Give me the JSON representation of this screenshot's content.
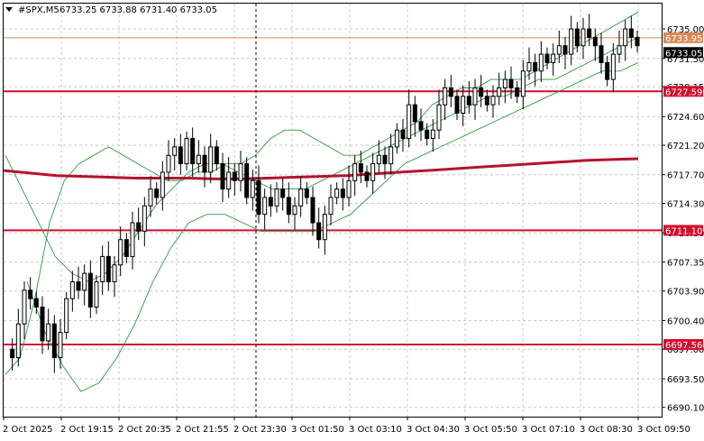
{
  "header": {
    "menu_icon": "triangle-down-icon",
    "symbol": "#SPX,M5",
    "ohlc": "6733.25 6733.88 6731.40 6733.05"
  },
  "chart_data": {
    "type": "candlestick",
    "title": "#SPX,M5",
    "ylim": [
      6689.0,
      6738.0
    ],
    "y_ticks": [
      "6735.00",
      "6731.50",
      "6728.15",
      "6724.60",
      "6721.20",
      "6717.70",
      "6714.30",
      "6710.80",
      "6707.35",
      "6703.90",
      "6700.40",
      "6697.00",
      "6693.50",
      "6690.10"
    ],
    "x_ticks": [
      "2 Oct 2025",
      "2 Oct 19:15",
      "2 Oct 20:35",
      "2 Oct 21:55",
      "2 Oct 23:30",
      "3 Oct 01:50",
      "3 Oct 03:10",
      "3 Oct 04:30",
      "3 Oct 05:50",
      "3 Oct 07:10",
      "3 Oct 08:30",
      "3 Oct 09:50"
    ],
    "grid": true,
    "levels": [
      {
        "label": "6733.95",
        "value": 6733.95,
        "color": "#d88a56",
        "style": "thin"
      },
      {
        "label": "6727.59",
        "value": 6727.59,
        "color": "#d10f2f",
        "style": "thick"
      },
      {
        "label": "6711.10",
        "value": 6711.1,
        "color": "#d10f2f",
        "style": "thick"
      },
      {
        "label": "6697.56",
        "value": 6697.56,
        "color": "#d10f2f",
        "style": "thick"
      }
    ],
    "current_price": {
      "label": "6733.05",
      "value": 6733.05
    },
    "candle_path": [
      6697,
      6696,
      6700,
      6704,
      6703,
      6702,
      6698,
      6700,
      6696,
      6699,
      6703,
      6705,
      6704,
      6706,
      6702,
      6705,
      6708,
      6705,
      6707,
      6710,
      6708,
      6712,
      6711,
      6714,
      6716,
      6715,
      6718,
      6720,
      6721,
      6719,
      6722,
      6719,
      6720,
      6718,
      6721,
      6719,
      6716,
      6718,
      6717,
      6719,
      6715,
      6717,
      6713,
      6715,
      6714,
      6716,
      6715,
      6713,
      6714,
      6716,
      6715,
      6712,
      6710,
      6713,
      6715,
      6716,
      6715,
      6717,
      6719,
      6718,
      6717,
      6719,
      6720,
      6719,
      6721,
      6723,
      6722,
      6726,
      6724,
      6723,
      6722,
      6723,
      6726,
      6728,
      6727,
      6725,
      6727,
      6726,
      6728,
      6727,
      6726,
      6727,
      6728,
      6729,
      6728,
      6727,
      6730,
      6731,
      6730,
      6732,
      6731,
      6732,
      6733,
      6732,
      6735,
      6733,
      6735,
      6734,
      6733,
      6731,
      6729,
      6732,
      6733,
      6735,
      6734,
      6733
    ],
    "bollinger_upper": [
      [
        6694,
        6696,
        6703,
        6712,
        6717,
        6719,
        6720,
        6721,
        6720,
        6719,
        6718,
        6717,
        6717,
        6718,
        6718,
        6719,
        6719,
        6720,
        6722,
        6723,
        6723,
        6722,
        6721,
        6720,
        6720,
        6721,
        6722,
        6723,
        6724,
        6726,
        6727,
        6728,
        6728,
        6729,
        6729,
        6729,
        6730,
        6731,
        6732,
        6733,
        6734,
        6735,
        6736,
        6737
      ]
    ],
    "bollinger_middle": [
      [
        6720,
        6716,
        6712,
        6708,
        6706,
        6705,
        6706,
        6708,
        6711,
        6714,
        6716,
        6718,
        6719,
        6719,
        6718,
        6717,
        6716,
        6716,
        6716,
        6717,
        6718,
        6719,
        6720,
        6721,
        6722,
        6723,
        6724,
        6725,
        6726,
        6727,
        6727,
        6728,
        6729,
        6729,
        6730,
        6731,
        6732,
        6733,
        6734
      ]
    ],
    "bollinger_lower": [
      [
        6705,
        6699,
        6695,
        6692,
        6693,
        6696,
        6700,
        6705,
        6709,
        6712,
        6713,
        6713,
        6712,
        6711,
        6711,
        6711,
        6711,
        6712,
        6713,
        6715,
        6717,
        6719,
        6720,
        6721,
        6722,
        6723,
        6724,
        6725,
        6726,
        6727,
        6728,
        6729,
        6730,
        6730,
        6731
      ]
    ],
    "ma_series": [
      6718.2,
      6717.9,
      6717.6,
      6717.5,
      6717.4,
      6717.3,
      6717.3,
      6717.3,
      6717.2,
      6717.2,
      6717.3,
      6717.4,
      6717.5,
      6717.6,
      6717.8,
      6718.0,
      6718.2,
      6718.4,
      6718.6,
      6718.8,
      6719.0,
      6719.2,
      6719.4,
      6719.5,
      6719.6
    ]
  }
}
